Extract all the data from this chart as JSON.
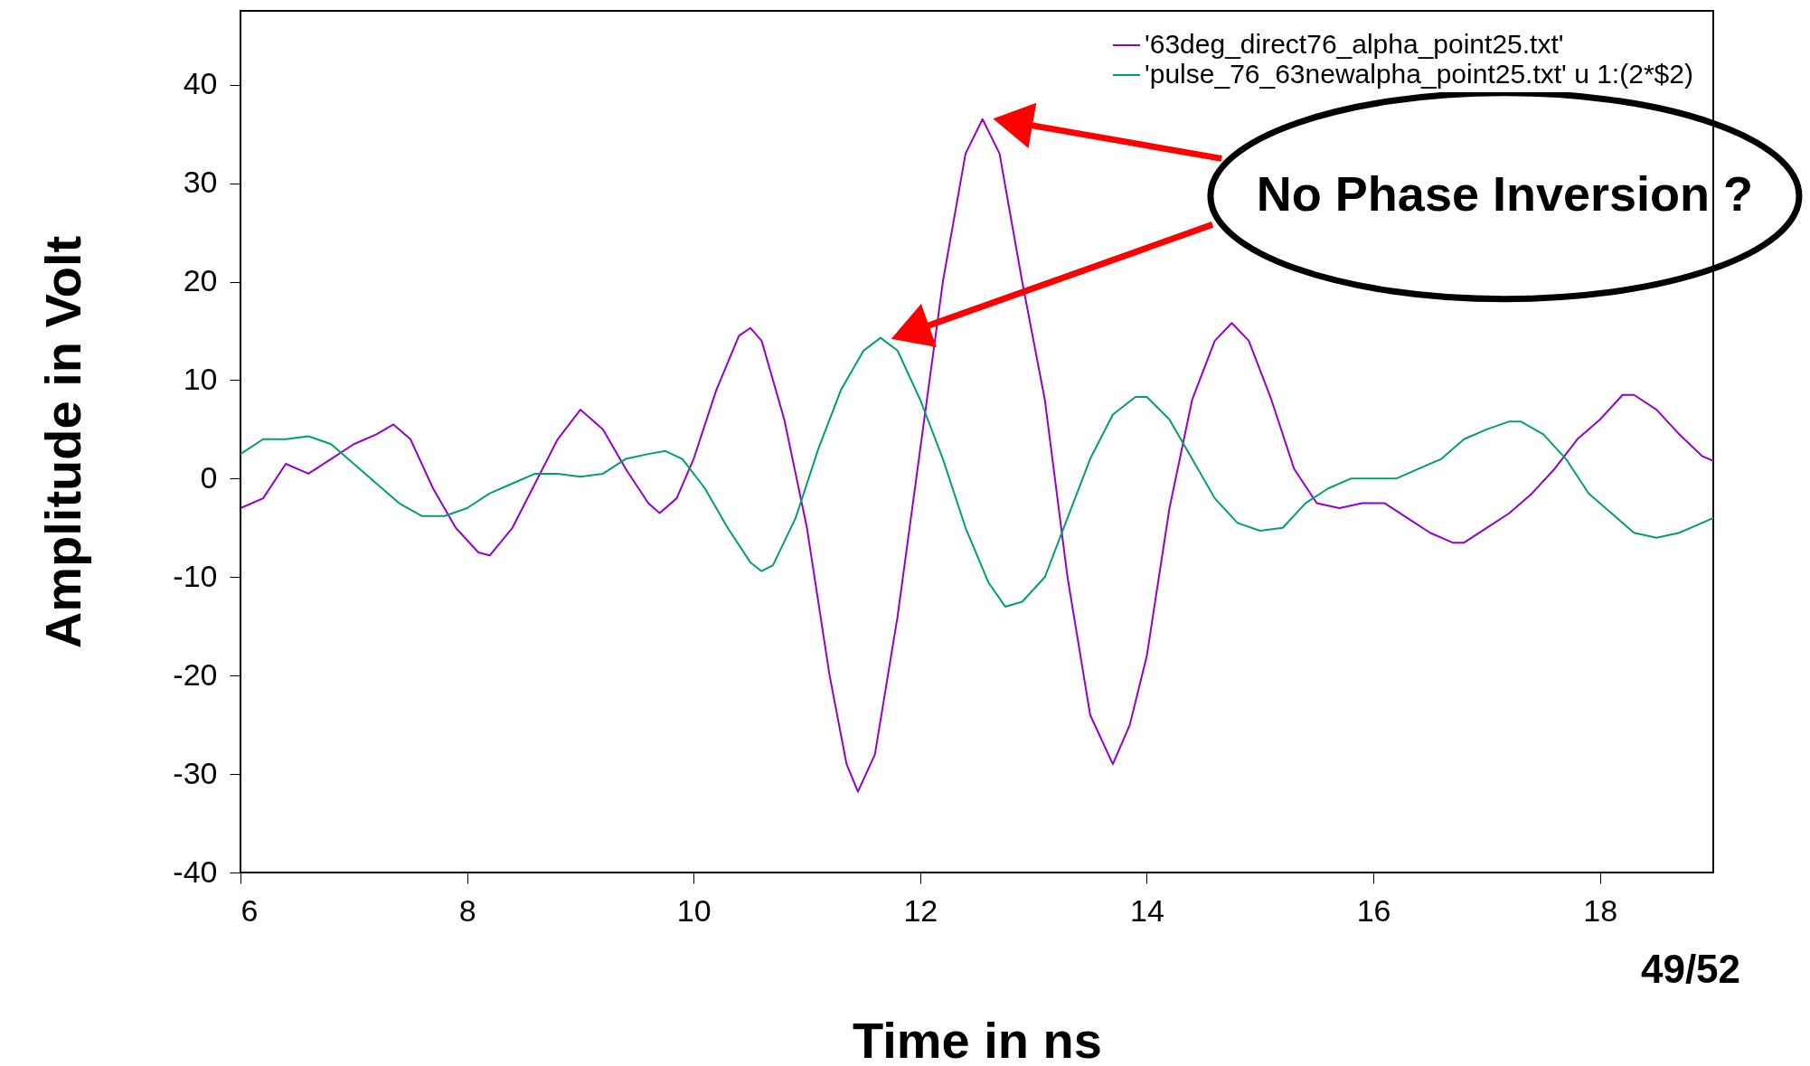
{
  "chart_data": {
    "type": "line",
    "xlabel": "Time in ns",
    "ylabel": "Amplitude in Volt",
    "xlim": [
      6,
      19
    ],
    "xticks": [
      6,
      8,
      10,
      12,
      14,
      16,
      18
    ],
    "ylim": [
      -40,
      47.5
    ],
    "yticks": [
      -40,
      -30,
      -20,
      -10,
      0,
      10,
      20,
      30,
      40
    ],
    "grid": false,
    "legend": "top right",
    "marker": "none",
    "line_style": "solid",
    "annotations": [
      "No Phase Inversion ?",
      "49/52"
    ],
    "series": [
      {
        "name": "'63deg_direct76_alpha_point25.txt'",
        "color": "#9400d3",
        "x": [
          6.0,
          6.2,
          6.4,
          6.6,
          6.8,
          7.0,
          7.2,
          7.35,
          7.5,
          7.7,
          7.9,
          8.1,
          8.2,
          8.4,
          8.6,
          8.8,
          9.0,
          9.2,
          9.4,
          9.6,
          9.7,
          9.85,
          10.0,
          10.2,
          10.4,
          10.5,
          10.6,
          10.8,
          11.0,
          11.2,
          11.35,
          11.45,
          11.6,
          11.8,
          12.0,
          12.2,
          12.4,
          12.55,
          12.7,
          12.9,
          13.1,
          13.3,
          13.5,
          13.7,
          13.85,
          14.0,
          14.2,
          14.4,
          14.6,
          14.75,
          14.9,
          15.1,
          15.3,
          15.5,
          15.7,
          15.9,
          16.1,
          16.3,
          16.5,
          16.7,
          16.8,
          17.0,
          17.2,
          17.4,
          17.6,
          17.8,
          18.0,
          18.2,
          18.3,
          18.5,
          18.7,
          18.9,
          19.0
        ],
        "values": [
          -3,
          -2,
          1.5,
          0.5,
          2,
          3.5,
          4.5,
          5.5,
          4,
          -1,
          -5,
          -7.5,
          -7.8,
          -5,
          -0.5,
          4,
          7,
          5,
          1,
          -2.5,
          -3.5,
          -2,
          2,
          9,
          14.5,
          15.3,
          14,
          6,
          -5,
          -20,
          -29,
          -31.8,
          -28,
          -14,
          3,
          20,
          33,
          36.5,
          33,
          20,
          8,
          -10,
          -24,
          -29,
          -25,
          -18,
          -3,
          8,
          14,
          15.8,
          14,
          8,
          1,
          -2.5,
          -3,
          -2.5,
          -2.5,
          -4,
          -5.5,
          -6.5,
          -6.5,
          -5,
          -3.5,
          -1.5,
          1,
          4,
          6,
          8.5,
          8.5,
          7,
          4.5,
          2.3,
          1.8
        ]
      },
      {
        "name": "'pulse_76_63newalpha_point25.txt' u 1:(2*$2)",
        "color": "#009e73",
        "x": [
          6.0,
          6.2,
          6.4,
          6.6,
          6.8,
          7.0,
          7.2,
          7.4,
          7.6,
          7.8,
          8.0,
          8.2,
          8.4,
          8.6,
          8.8,
          9.0,
          9.2,
          9.4,
          9.6,
          9.75,
          9.9,
          10.1,
          10.3,
          10.5,
          10.6,
          10.7,
          10.9,
          11.1,
          11.3,
          11.5,
          11.65,
          11.8,
          12.0,
          12.2,
          12.4,
          12.6,
          12.75,
          12.9,
          13.1,
          13.3,
          13.5,
          13.7,
          13.9,
          14.0,
          14.2,
          14.4,
          14.6,
          14.8,
          15.0,
          15.2,
          15.4,
          15.6,
          15.8,
          16.0,
          16.2,
          16.4,
          16.6,
          16.8,
          17.0,
          17.2,
          17.3,
          17.5,
          17.7,
          17.9,
          18.1,
          18.3,
          18.5,
          18.7,
          18.9,
          19.0
        ],
        "values": [
          2.5,
          4,
          4,
          4.3,
          3.5,
          1.5,
          -0.5,
          -2.5,
          -3.8,
          -3.8,
          -3,
          -1.5,
          -0.5,
          0.5,
          0.5,
          0.2,
          0.5,
          2,
          2.5,
          2.8,
          2,
          -1,
          -5,
          -8.5,
          -9.4,
          -8.8,
          -4,
          3,
          9,
          13,
          14.3,
          13,
          8,
          2,
          -5,
          -10.5,
          -13,
          -12.5,
          -10,
          -4,
          2,
          6.5,
          8.3,
          8.3,
          6,
          2,
          -2,
          -4.5,
          -5.3,
          -5,
          -2.5,
          -1,
          0,
          0,
          0,
          1,
          2,
          4,
          5,
          5.8,
          5.8,
          4.5,
          2,
          -1.5,
          -3.5,
          -5.5,
          -6,
          -5.5,
          -4.5,
          -4
        ]
      }
    ]
  }
}
